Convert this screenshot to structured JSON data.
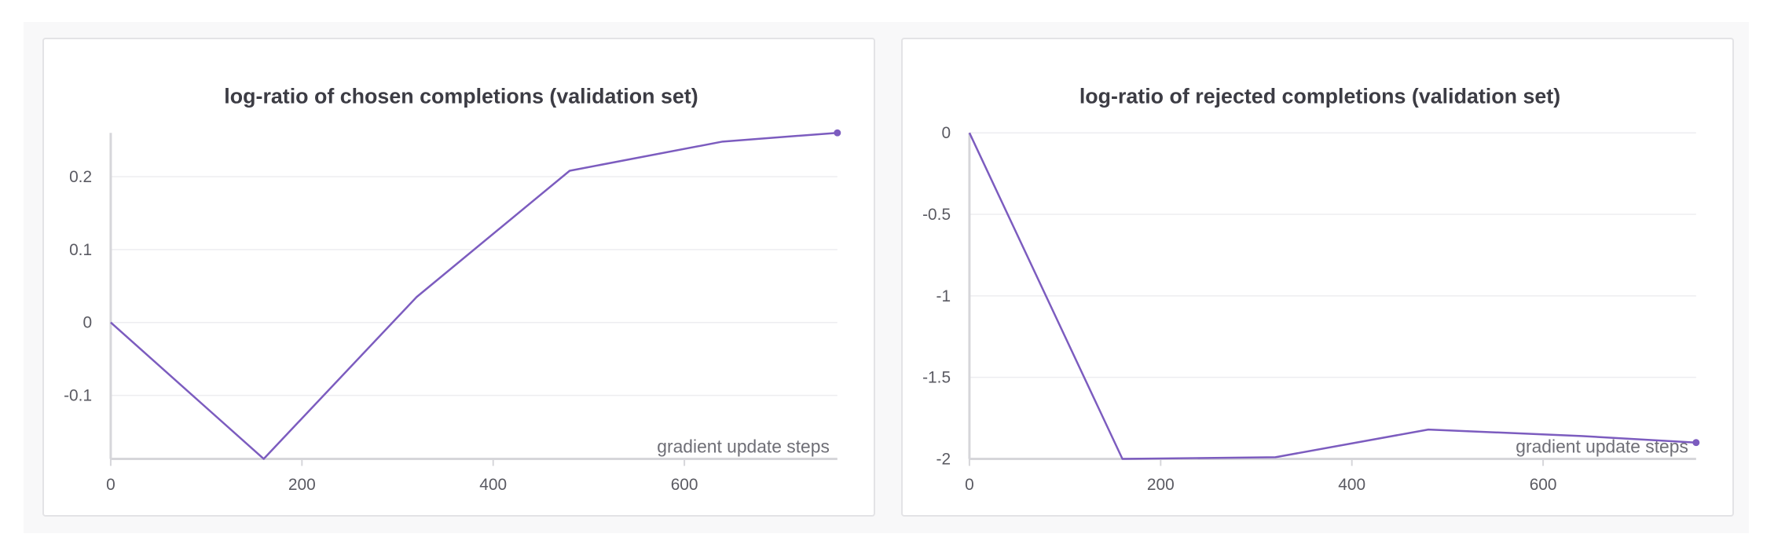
{
  "colors": {
    "line": "#7c5cbf",
    "grid": "#ededf0",
    "axis": "#d6d6da"
  },
  "chart_data": [
    {
      "type": "line",
      "title": "log-ratio of chosen completions (validation set)",
      "xlabel": "gradient update steps",
      "ylabel": "",
      "xlim": [
        0,
        760
      ],
      "ylim": [
        -0.187,
        0.26
      ],
      "xticks": [
        0,
        200,
        400,
        600
      ],
      "xtick_labels": [
        "0",
        "200",
        "400",
        "600"
      ],
      "yticks": [
        0.2,
        0.1,
        0,
        -0.1
      ],
      "ytick_labels": [
        "0.2",
        "0.1",
        "0",
        "-0.1"
      ],
      "grid": true,
      "series": [
        {
          "x": [
            0,
            160,
            320,
            480,
            640,
            760
          ],
          "y": [
            0,
            -0.187,
            0.035,
            0.208,
            0.248,
            0.26
          ]
        }
      ]
    },
    {
      "type": "line",
      "title": "log-ratio of rejected completions (validation set)",
      "xlabel": "gradient update steps",
      "ylabel": "",
      "xlim": [
        0,
        760
      ],
      "ylim": [
        -2,
        0
      ],
      "xticks": [
        0,
        200,
        400,
        600
      ],
      "xtick_labels": [
        "0",
        "200",
        "400",
        "600"
      ],
      "yticks": [
        0,
        -0.5,
        -1,
        -1.5,
        -2
      ],
      "ytick_labels": [
        "0",
        "-0.5",
        "-1",
        "-1.5",
        "-2"
      ],
      "grid": true,
      "series": [
        {
          "x": [
            0,
            160,
            320,
            480,
            640,
            760
          ],
          "y": [
            0,
            -2.0,
            -1.99,
            -1.82,
            -1.86,
            -1.9
          ]
        }
      ]
    }
  ]
}
